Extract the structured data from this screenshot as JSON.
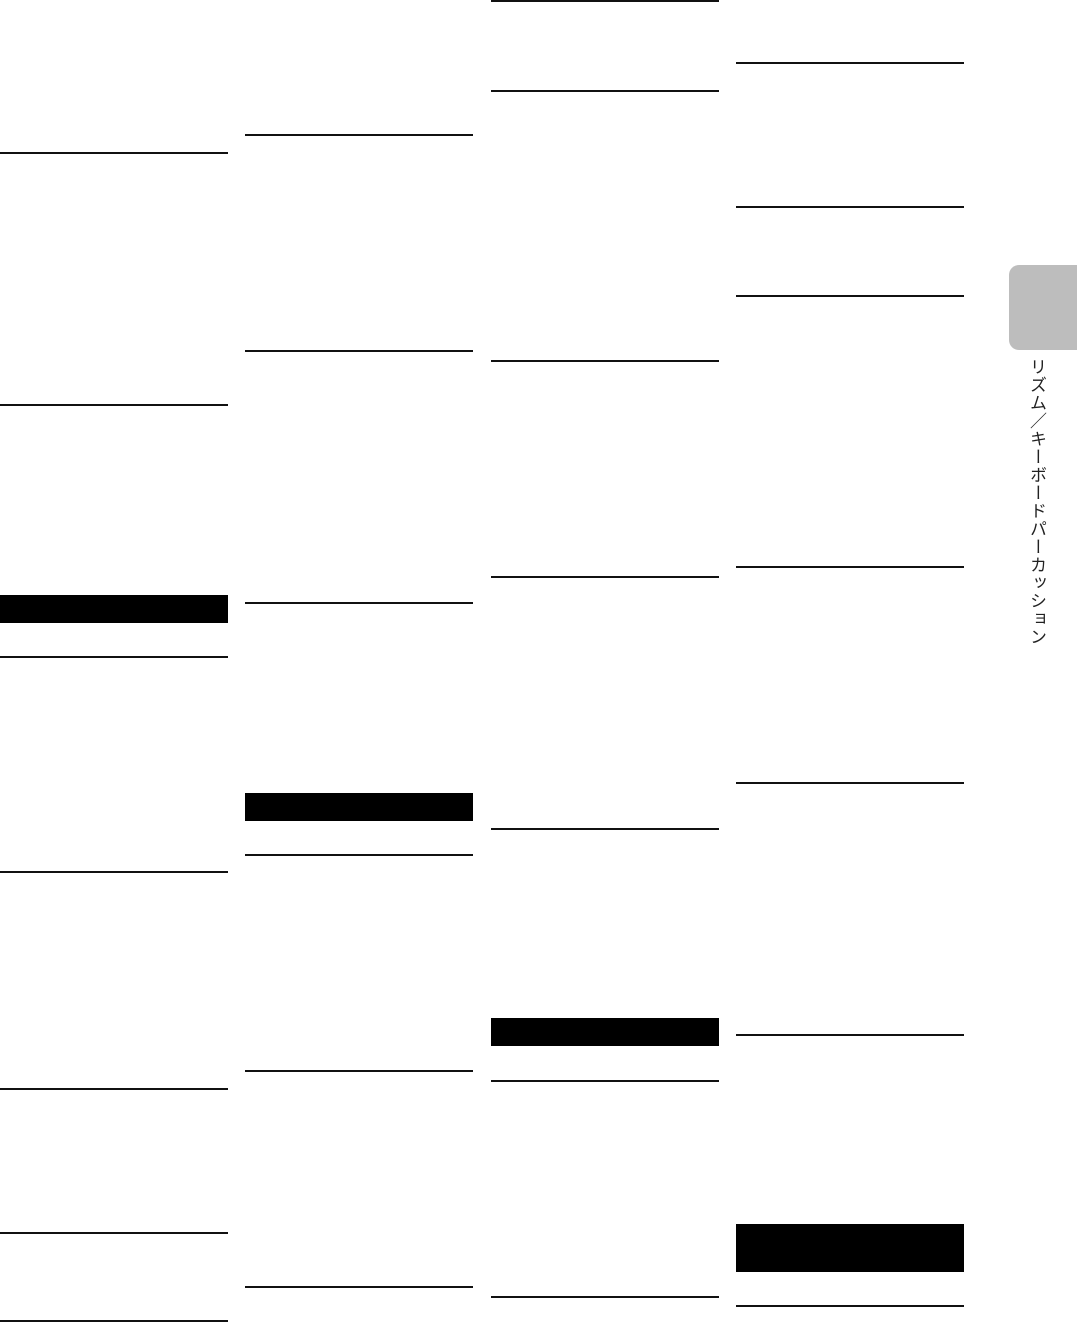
{
  "side_tab": {
    "label": "リズム／キーボードパーカッション",
    "color": "#bdbdbd"
  }
}
